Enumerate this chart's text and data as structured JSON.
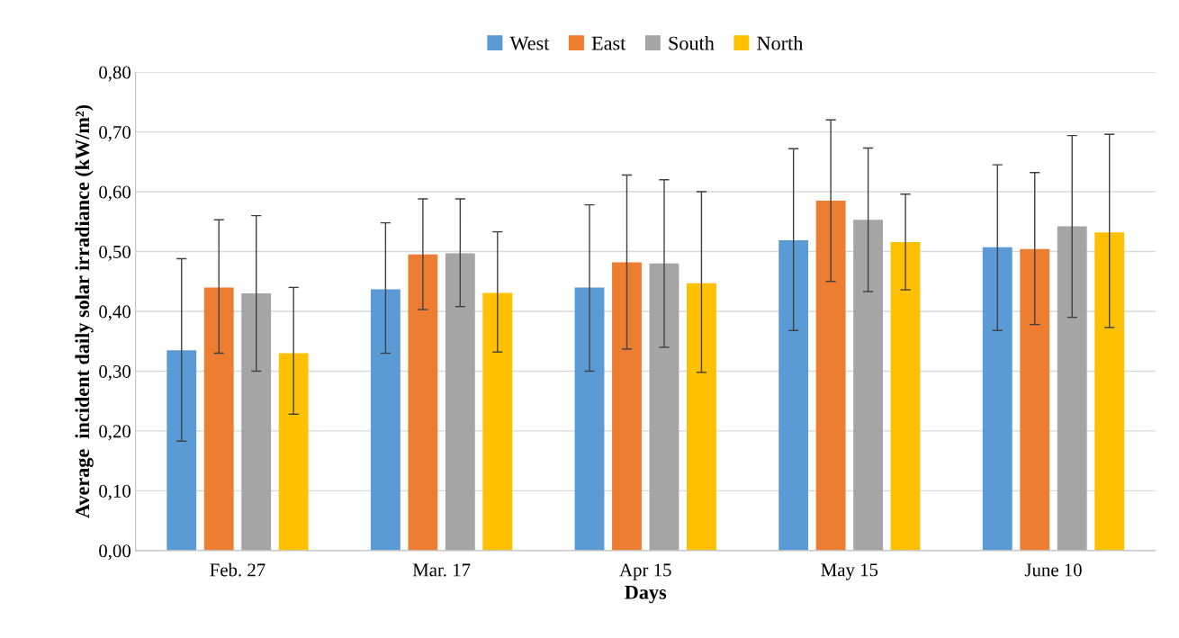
{
  "chart_data": {
    "type": "bar",
    "xlabel": "Days",
    "ylabel": "Average  incident daily solar irradiance (kW/m²)",
    "categories": [
      "Feb. 27",
      "Mar. 17",
      "Apr 15",
      "May 15",
      "June 10"
    ],
    "series": [
      {
        "name": "West",
        "color": "#5b9bd5",
        "values": [
          0.335,
          0.437,
          0.44,
          0.519,
          0.507
        ],
        "errors": [
          [
            0.183,
            0.488
          ],
          [
            0.33,
            0.548
          ],
          [
            0.3,
            0.578
          ],
          [
            0.368,
            0.672
          ],
          [
            0.368,
            0.645
          ]
        ]
      },
      {
        "name": "East",
        "color": "#ed7d31",
        "values": [
          0.44,
          0.495,
          0.482,
          0.585,
          0.504
        ],
        "errors": [
          [
            0.33,
            0.553
          ],
          [
            0.403,
            0.588
          ],
          [
            0.337,
            0.628
          ],
          [
            0.45,
            0.72
          ],
          [
            0.378,
            0.632
          ]
        ]
      },
      {
        "name": "South",
        "color": "#a5a5a5",
        "values": [
          0.43,
          0.497,
          0.48,
          0.553,
          0.542
        ],
        "errors": [
          [
            0.3,
            0.56
          ],
          [
            0.408,
            0.588
          ],
          [
            0.34,
            0.62
          ],
          [
            0.433,
            0.673
          ],
          [
            0.39,
            0.694
          ]
        ]
      },
      {
        "name": "North",
        "color": "#ffc000",
        "values": [
          0.33,
          0.431,
          0.447,
          0.516,
          0.532
        ],
        "errors": [
          [
            0.228,
            0.44
          ],
          [
            0.332,
            0.533
          ],
          [
            0.298,
            0.6
          ],
          [
            0.436,
            0.596
          ],
          [
            0.373,
            0.696
          ]
        ]
      }
    ],
    "ylim": [
      0,
      0.8
    ],
    "yticks": [
      {
        "value": 0,
        "label": "0,00"
      },
      {
        "value": 0.1,
        "label": "0,10"
      },
      {
        "value": 0.2,
        "label": "0,20"
      },
      {
        "value": 0.3,
        "label": "0,30"
      },
      {
        "value": 0.4,
        "label": "0,40"
      },
      {
        "value": 0.5,
        "label": "0,50"
      },
      {
        "value": 0.6,
        "label": "0,60"
      },
      {
        "value": 0.7,
        "label": "0,70"
      },
      {
        "value": 0.8,
        "label": "0,80"
      }
    ],
    "grid": "y",
    "legend": "top"
  }
}
